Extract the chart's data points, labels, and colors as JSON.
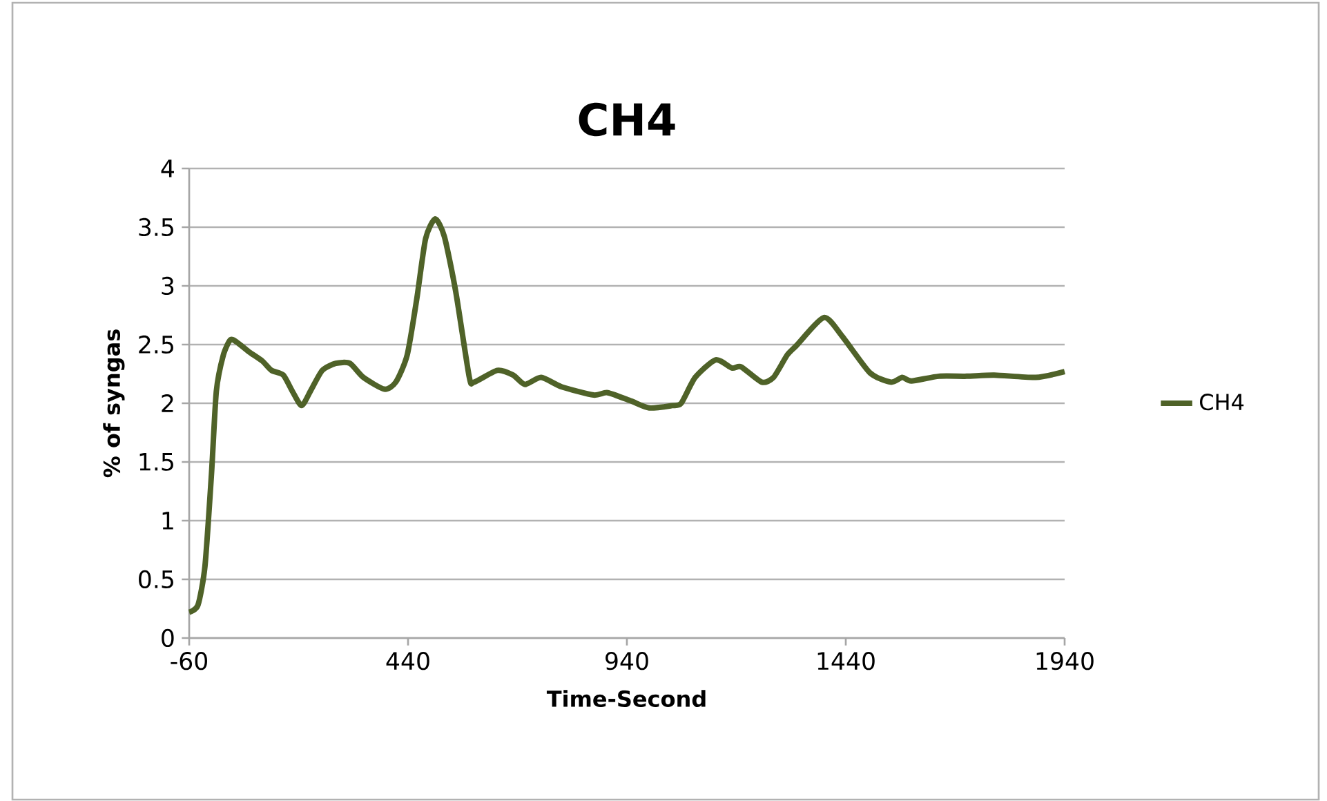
{
  "chart_data": {
    "type": "line",
    "title": "CH4",
    "xlabel": "Time-Second",
    "ylabel": "% of syngas",
    "xlim": [
      -60,
      1940
    ],
    "xticks": [
      -60,
      440,
      940,
      1440,
      1940
    ],
    "ylim": [
      0,
      4
    ],
    "yticks": [
      0,
      0.5,
      1,
      1.5,
      2,
      2.5,
      3,
      3.5,
      4
    ],
    "grid": "y",
    "legend": "right",
    "marker": "none",
    "line_style": "solid",
    "series": [
      {
        "name": "CH4",
        "color": "#4f6228",
        "x": [
          -60,
          -40,
          -24,
          -9,
          2,
          18,
          34,
          49,
          76,
          107,
          128,
          155,
          176,
          197,
          218,
          244,
          275,
          307,
          338,
          386,
          412,
          438,
          460,
          480,
          502,
          523,
          549,
          580,
          591,
          644,
          680,
          707,
          744,
          791,
          864,
          896,
          949,
          991,
          1043,
          1064,
          1096,
          1143,
          1180,
          1201,
          1248,
          1275,
          1306,
          1327,
          1390,
          1432,
          1495,
          1543,
          1569,
          1590,
          1653,
          1716,
          1779,
          1874,
          1940
        ],
        "values": [
          0.22,
          0.28,
          0.61,
          1.4,
          2.1,
          2.41,
          2.54,
          2.52,
          2.44,
          2.36,
          2.28,
          2.24,
          2.1,
          1.98,
          2.11,
          2.28,
          2.34,
          2.34,
          2.22,
          2.12,
          2.18,
          2.41,
          2.89,
          3.4,
          3.57,
          3.42,
          2.95,
          2.22,
          2.18,
          2.28,
          2.24,
          2.16,
          2.22,
          2.14,
          2.07,
          2.09,
          2.02,
          1.96,
          1.98,
          2.0,
          2.22,
          2.37,
          2.3,
          2.31,
          2.18,
          2.22,
          2.41,
          2.49,
          2.73,
          2.57,
          2.26,
          2.18,
          2.22,
          2.19,
          2.23,
          2.23,
          2.24,
          2.22,
          2.27
        ]
      }
    ]
  }
}
